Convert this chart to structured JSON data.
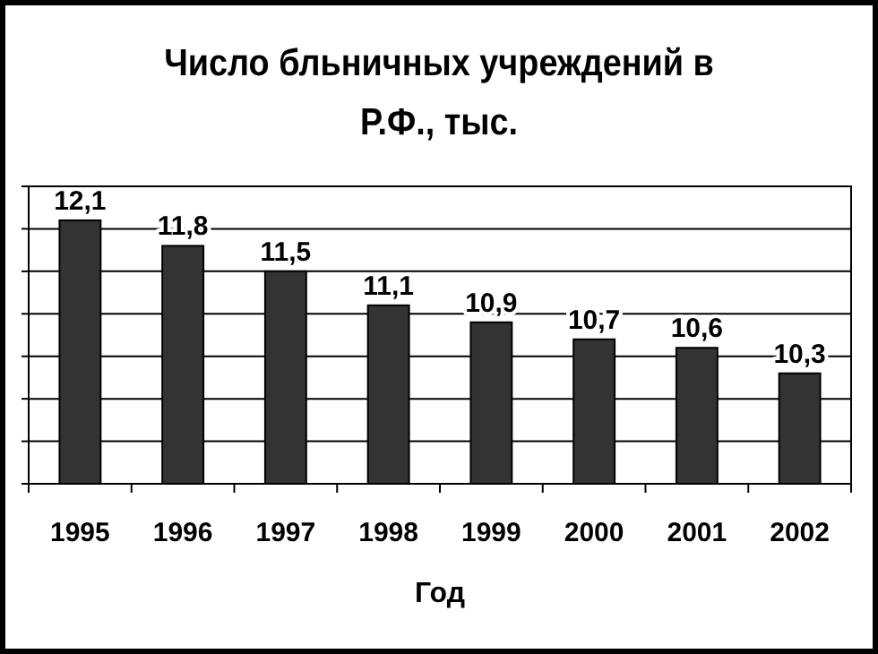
{
  "chart_data": {
    "type": "bar",
    "title": "Число бльничных учреждений в Р.Ф., тыс.",
    "xlabel": "Год",
    "categories": [
      "1995",
      "1996",
      "1997",
      "1998",
      "1999",
      "2000",
      "2001",
      "2002"
    ],
    "values": [
      12.1,
      11.8,
      11.5,
      11.1,
      10.9,
      10.7,
      10.6,
      10.3
    ],
    "color": "#333333",
    "ylim": [
      9,
      12.5
    ],
    "yticks": [
      {
        "value": 9,
        "label": null
      },
      {
        "value": 9.5,
        "label": null
      },
      {
        "value": 10,
        "label": null
      },
      {
        "value": 10.5,
        "label": null
      },
      {
        "value": 11,
        "label": null
      },
      {
        "value": 11.5,
        "label": null
      },
      {
        "value": 12,
        "label": null
      },
      {
        "value": 12.5,
        "label": null
      }
    ],
    "value_labels": [
      "12,1",
      "11,8",
      "11,5",
      "11,1",
      "10,9",
      "10,7",
      "10,6",
      "10,3"
    ],
    "grid": "y",
    "tick_labels": "x"
  }
}
